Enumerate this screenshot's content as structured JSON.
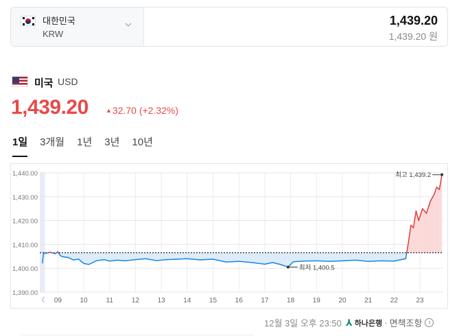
{
  "converter": {
    "country": "대한민국",
    "code": "KRW",
    "amount": "1,439.20",
    "amount_sub": "1,439.20 원",
    "icons": [
      "korea-flag-icon",
      "chevron-down-icon"
    ]
  },
  "currency": {
    "name": "미국",
    "code": "USD",
    "rate": "1,439.20",
    "change_arrow": "▲",
    "change": "32.70 (+2.32%)",
    "color_up": "#e84a4a",
    "icons": [
      "us-flag-icon"
    ]
  },
  "tabs": [
    {
      "label": "1일",
      "active": true
    },
    {
      "label": "3개월",
      "active": false
    },
    {
      "label": "1년",
      "active": false
    },
    {
      "label": "3년",
      "active": false
    },
    {
      "label": "10년",
      "active": false
    }
  ],
  "chart_data": {
    "type": "line",
    "ylim": [
      1390,
      1440
    ],
    "yticks": [
      "1,440.00",
      "1,430.00",
      "1,420.00",
      "1,410.00",
      "1,400.00",
      "1,390.00"
    ],
    "ytick_values": [
      1440,
      1430,
      1420,
      1410,
      1400,
      1390
    ],
    "xticks": [
      "09",
      "10",
      "11",
      "12",
      "13",
      "14",
      "15",
      "16",
      "17",
      "18",
      "19",
      "20",
      "21",
      "22",
      "23"
    ],
    "xlim": [
      8.3,
      23.9
    ],
    "baseline": 1406.5,
    "grid": true,
    "max_label": "최고 1,439.2",
    "min_label": "최저 1,400.5",
    "night_icon": "moon-icon",
    "colors": {
      "up": "#e03c3c",
      "down": "#1a85e0",
      "up_fill": "#fbd9d9",
      "down_fill": "#dcecfb",
      "baseline": "#333333"
    },
    "series": [
      {
        "x": [
          8.4,
          8.45,
          8.5,
          8.7,
          8.9,
          9.0,
          9.1,
          9.2,
          9.4,
          9.6,
          9.8,
          10.0,
          10.2,
          10.5,
          10.8,
          11.0,
          11.3,
          11.6,
          12.0,
          12.4,
          12.8,
          13.2,
          13.6,
          14.0,
          14.5,
          15.0,
          15.5,
          16.0,
          16.5,
          17.0,
          17.3,
          17.6,
          17.9,
          18.1,
          18.5,
          19.0,
          19.5,
          20.0,
          20.5,
          21.0,
          21.5,
          22.0,
          22.45,
          22.55,
          22.65,
          22.75,
          22.85,
          22.95,
          23.1,
          23.25,
          23.4,
          23.55,
          23.65,
          23.75,
          23.8,
          23.85
        ],
        "y": [
          1402.2,
          1406.6,
          1406.2,
          1406.7,
          1406.1,
          1406.9,
          1405.2,
          1404.8,
          1404.5,
          1403.5,
          1403.8,
          1402.0,
          1401.6,
          1403.2,
          1403.6,
          1403.0,
          1403.4,
          1403.1,
          1403.6,
          1404.0,
          1403.2,
          1403.6,
          1403.8,
          1404.0,
          1403.5,
          1403.8,
          1402.6,
          1402.9,
          1402.4,
          1401.7,
          1402.4,
          1401.6,
          1400.5,
          1402.7,
          1403.0,
          1403.1,
          1402.9,
          1403.1,
          1403.4,
          1402.9,
          1403.1,
          1403.0,
          1404.0,
          1410.5,
          1418.0,
          1417.0,
          1424.0,
          1420.0,
          1425.0,
          1423.0,
          1428.0,
          1431.0,
          1434.0,
          1433.0,
          1436.0,
          1439.2
        ]
      }
    ]
  },
  "footer": {
    "datetime": "12월 3일 오후 23:50",
    "bank": "하나은행",
    "dot": "·",
    "disclaimer": "면책조항"
  }
}
